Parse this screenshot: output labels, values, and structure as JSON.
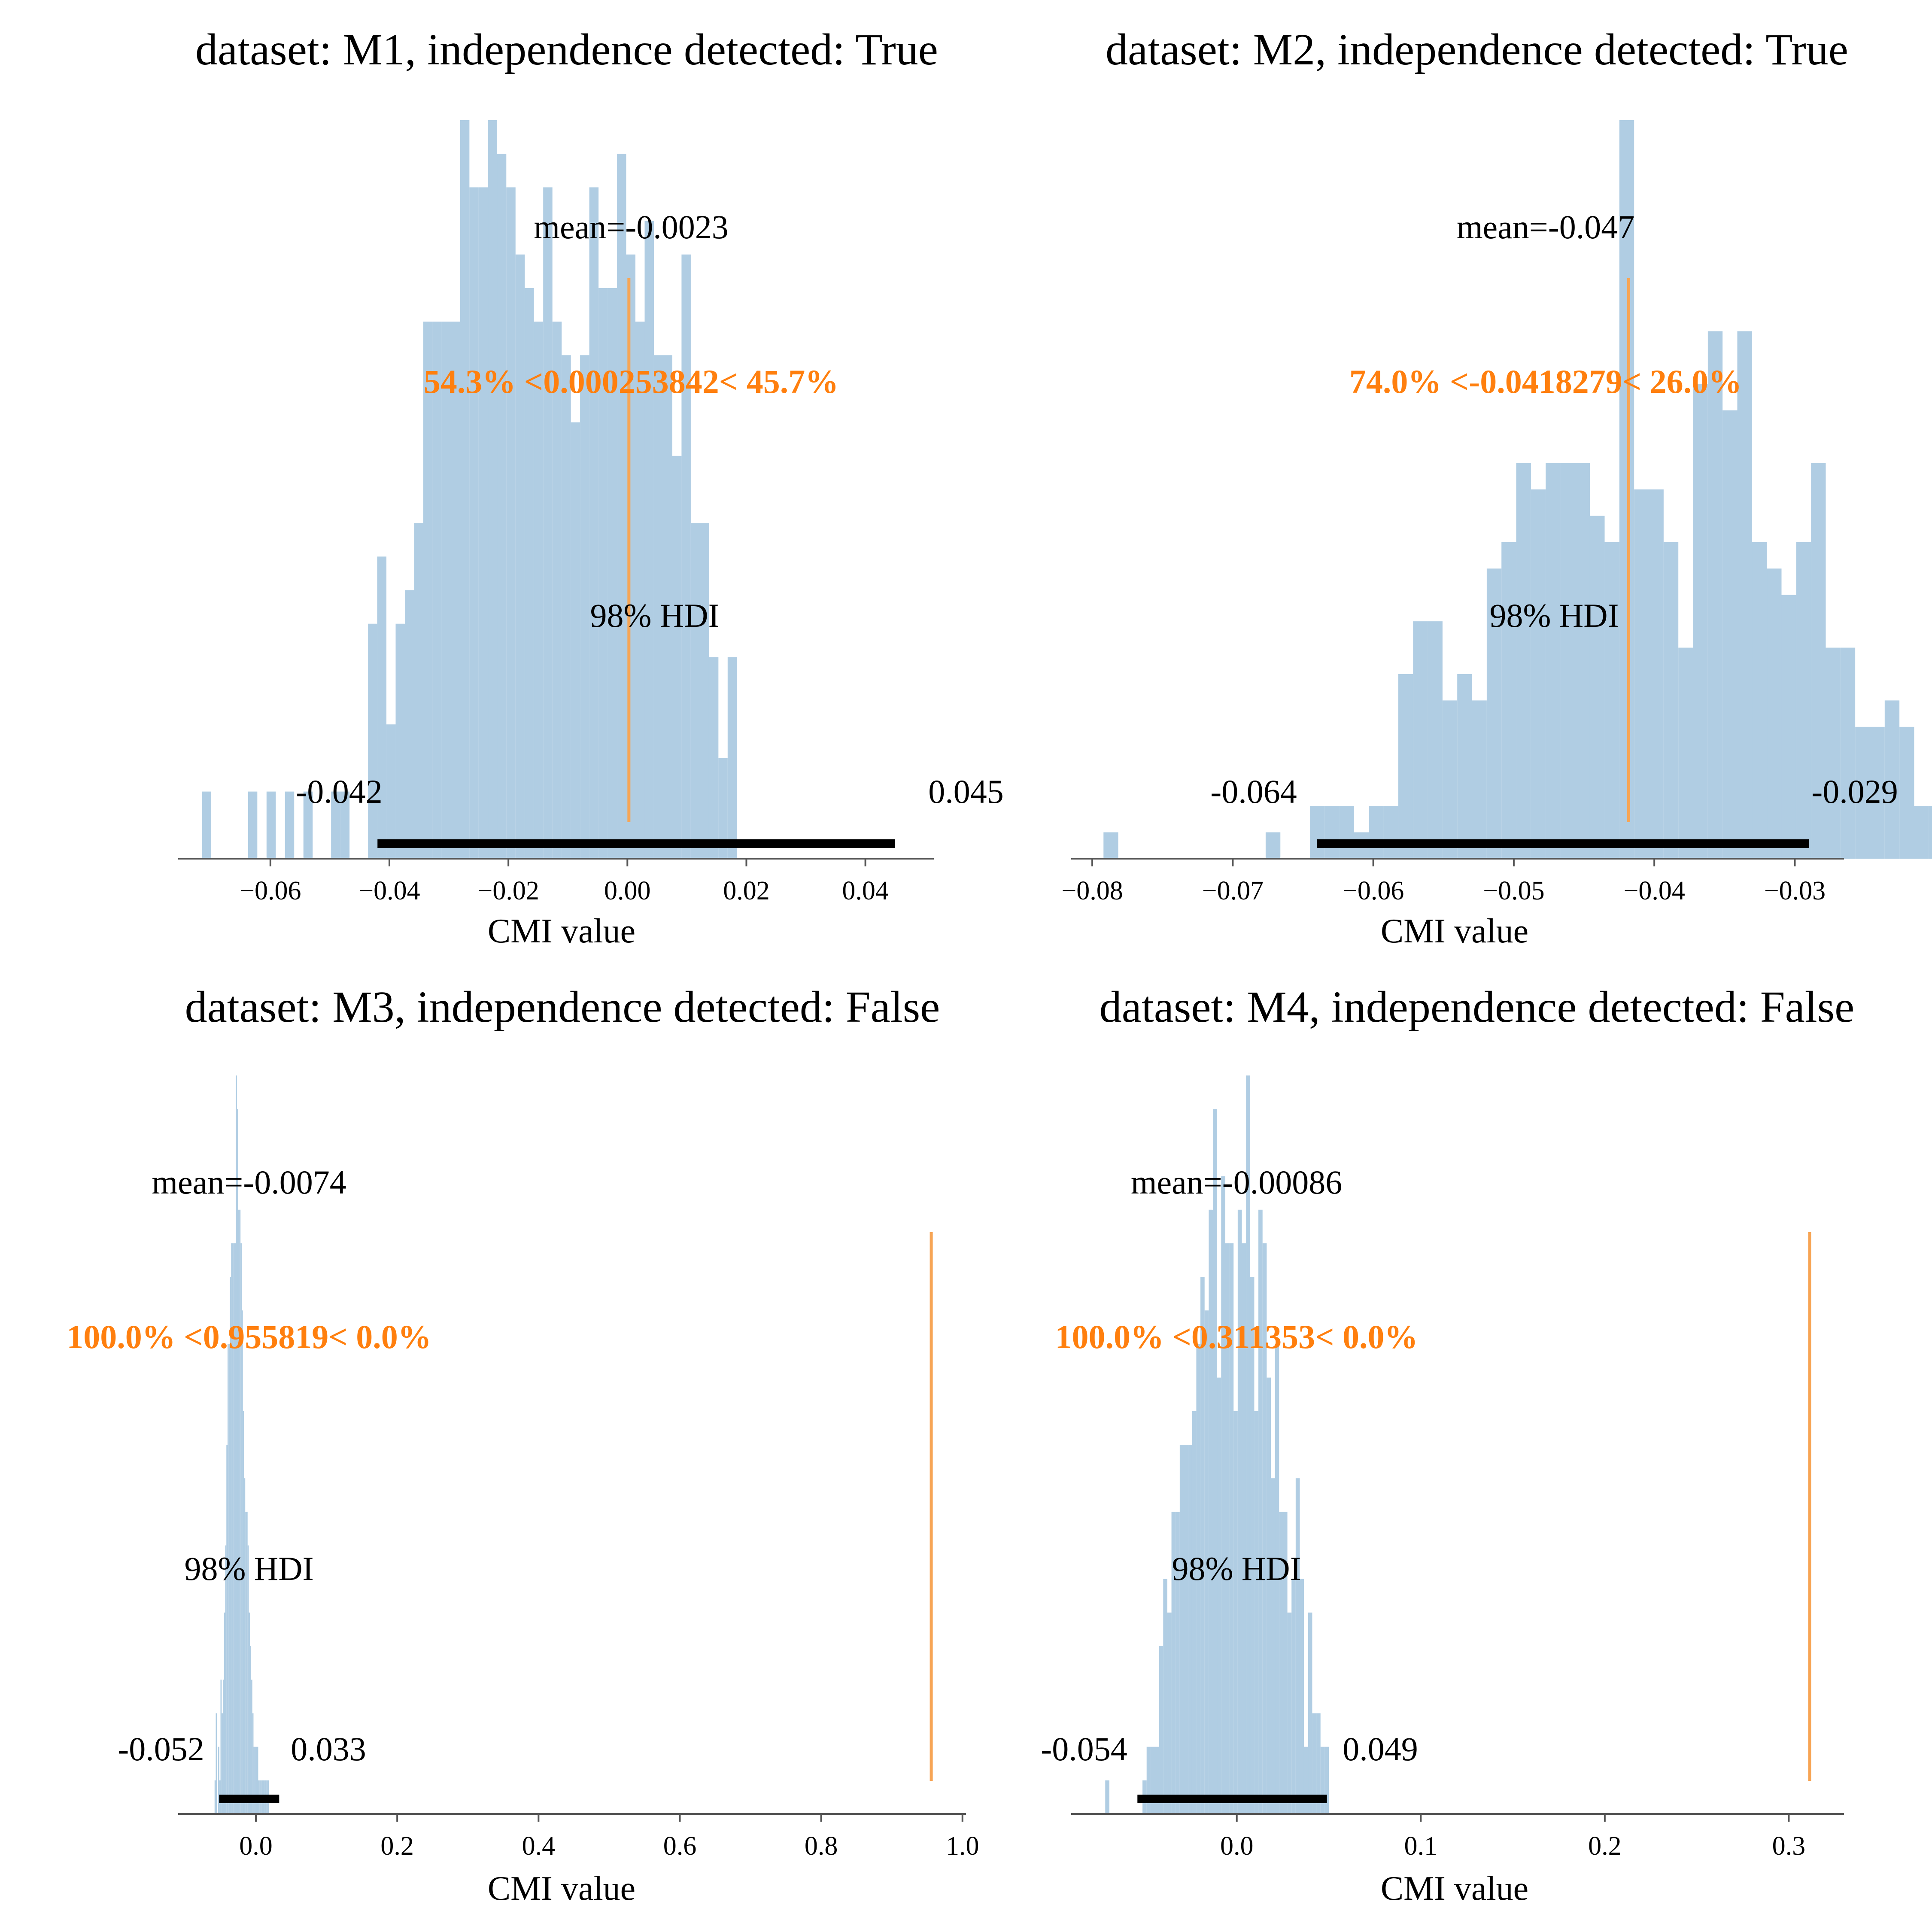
{
  "chart_data": [
    {
      "type": "histogram",
      "title": "dataset: M1, independence detected: True",
      "xlabel": "CMI value",
      "ylabel": "",
      "xlim": [
        -0.0755,
        0.0515
      ],
      "xticks": [
        -0.06,
        -0.04,
        -0.02,
        0.0,
        0.02,
        0.04
      ],
      "xtick_labels": [
        "−0.06",
        "−0.04",
        "−0.02",
        "0.00",
        "0.02",
        "0.04"
      ],
      "bin_start": -0.0715,
      "bin_width": 0.00155,
      "counts": [
        2,
        0,
        0,
        0,
        0,
        2,
        0,
        2,
        0,
        2,
        0,
        2,
        0,
        0,
        2,
        2,
        0,
        0,
        7,
        9,
        4,
        7,
        8,
        10,
        16,
        16,
        16,
        16,
        22,
        20,
        20,
        22,
        21,
        20,
        18,
        17,
        16,
        20,
        16,
        15,
        13,
        15,
        20,
        17,
        17,
        21,
        18,
        16,
        19,
        15,
        15,
        12,
        18,
        10,
        10,
        6,
        3,
        6,
        0,
        0
      ],
      "mean_label": "mean=-0.0023",
      "ref_value": 0.000253842,
      "ref_label": "54.3% <0.000253842< 45.7%",
      "hdi_label": "98% HDI",
      "hdi": [
        -0.042,
        0.045
      ],
      "hdi_low_label": "-0.042",
      "hdi_high_label": "0.045"
    },
    {
      "type": "histogram",
      "title": "dataset: M2, independence detected: True",
      "xlabel": "CMI value",
      "ylabel": "",
      "xlim": [
        -0.0815,
        -0.0265
      ],
      "xticks": [
        -0.08,
        -0.07,
        -0.06,
        -0.05,
        -0.04,
        -0.03
      ],
      "xtick_labels": [
        "−0.08",
        "−0.07",
        "−0.06",
        "−0.05",
        "−0.04",
        "−0.03"
      ],
      "bin_start": -0.0792,
      "bin_width": 0.001049,
      "counts": [
        1,
        0,
        0,
        0,
        0,
        0,
        0,
        0,
        0,
        0,
        0,
        1,
        0,
        0,
        2,
        2,
        2,
        1,
        2,
        2,
        7,
        9,
        9,
        6,
        7,
        6,
        11,
        12,
        15,
        14,
        15,
        15,
        15,
        13,
        12,
        28,
        14,
        14,
        12,
        8,
        18,
        20,
        17,
        20,
        12,
        11,
        10,
        12,
        15,
        8,
        8,
        5,
        5,
        6,
        5,
        2,
        2,
        2,
        3,
        3
      ],
      "mean_label": "mean=-0.047",
      "ref_value": -0.0418279,
      "ref_label": "74.0% <-0.0418279< 26.0%",
      "hdi_label": "98% HDI",
      "hdi": [
        -0.064,
        -0.029
      ],
      "hdi_low_label": "-0.064",
      "hdi_high_label": "-0.029"
    },
    {
      "type": "histogram",
      "title": "dataset: M3, independence detected: False",
      "xlabel": "CMI value",
      "ylabel": "",
      "xlim": [
        -0.11,
        1.005
      ],
      "xticks": [
        0.0,
        0.2,
        0.4,
        0.6,
        0.8,
        1.0
      ],
      "xtick_labels": [
        "0.0",
        "0.2",
        "0.4",
        "0.6",
        "0.8",
        "1.0"
      ],
      "bin_start": -0.0585,
      "bin_width": 0.00167,
      "counts": [
        1,
        3,
        0,
        2,
        1,
        4,
        3,
        4,
        6,
        8,
        11,
        14,
        14,
        16,
        17,
        17,
        17,
        17,
        22,
        21,
        18,
        18,
        17,
        15,
        12,
        10,
        9,
        9,
        8,
        6,
        5,
        4,
        3,
        2,
        2,
        2,
        2,
        1,
        1,
        1,
        1,
        1,
        1,
        1,
        1,
        1,
        0,
        0,
        0,
        0,
        0,
        0,
        0,
        0,
        0,
        0,
        0,
        0,
        0,
        0
      ],
      "mean_label": "mean=-0.0074",
      "ref_value": 0.955819,
      "ref_label": "100.0% <0.955819< 0.0%",
      "hdi_label": "98% HDI",
      "hdi": [
        -0.052,
        0.033
      ],
      "hdi_low_label": "-0.052",
      "hdi_high_label": "0.033"
    },
    {
      "type": "histogram",
      "title": "dataset: M4, independence detected: False",
      "xlabel": "CMI value",
      "ylabel": "",
      "xlim": [
        -0.09,
        0.33
      ],
      "xticks": [
        0.0,
        0.1,
        0.2,
        0.3
      ],
      "xtick_labels": [
        "0.0",
        "0.1",
        "0.2",
        "0.3"
      ],
      "bin_start": -0.0715,
      "bin_width": 0.00225,
      "counts": [
        1,
        0,
        0,
        0,
        0,
        0,
        0,
        0,
        0,
        1,
        2,
        2,
        2,
        5,
        7,
        6,
        9,
        9,
        11,
        11,
        11,
        12,
        14,
        16,
        15,
        18,
        21,
        13,
        19,
        17,
        17,
        12,
        18,
        17,
        22,
        16,
        12,
        18,
        17,
        13,
        10,
        14,
        9,
        9,
        6,
        7,
        10,
        7,
        2,
        6,
        3,
        3,
        2,
        2
      ],
      "mean_label": "mean=-0.00086",
      "ref_value": 0.311353,
      "ref_label": "100.0% <0.311353< 0.0%",
      "hdi_label": "98% HDI",
      "hdi": [
        -0.054,
        0.049
      ],
      "hdi_low_label": "-0.054",
      "hdi_high_label": "0.049"
    }
  ],
  "colors": {
    "bars": "#b0cde3",
    "ref_line": "#f7a555",
    "ref_text": "#ff7f0e",
    "text": "#000000",
    "axis": "#555555",
    "hdi_bar": "#000000"
  }
}
